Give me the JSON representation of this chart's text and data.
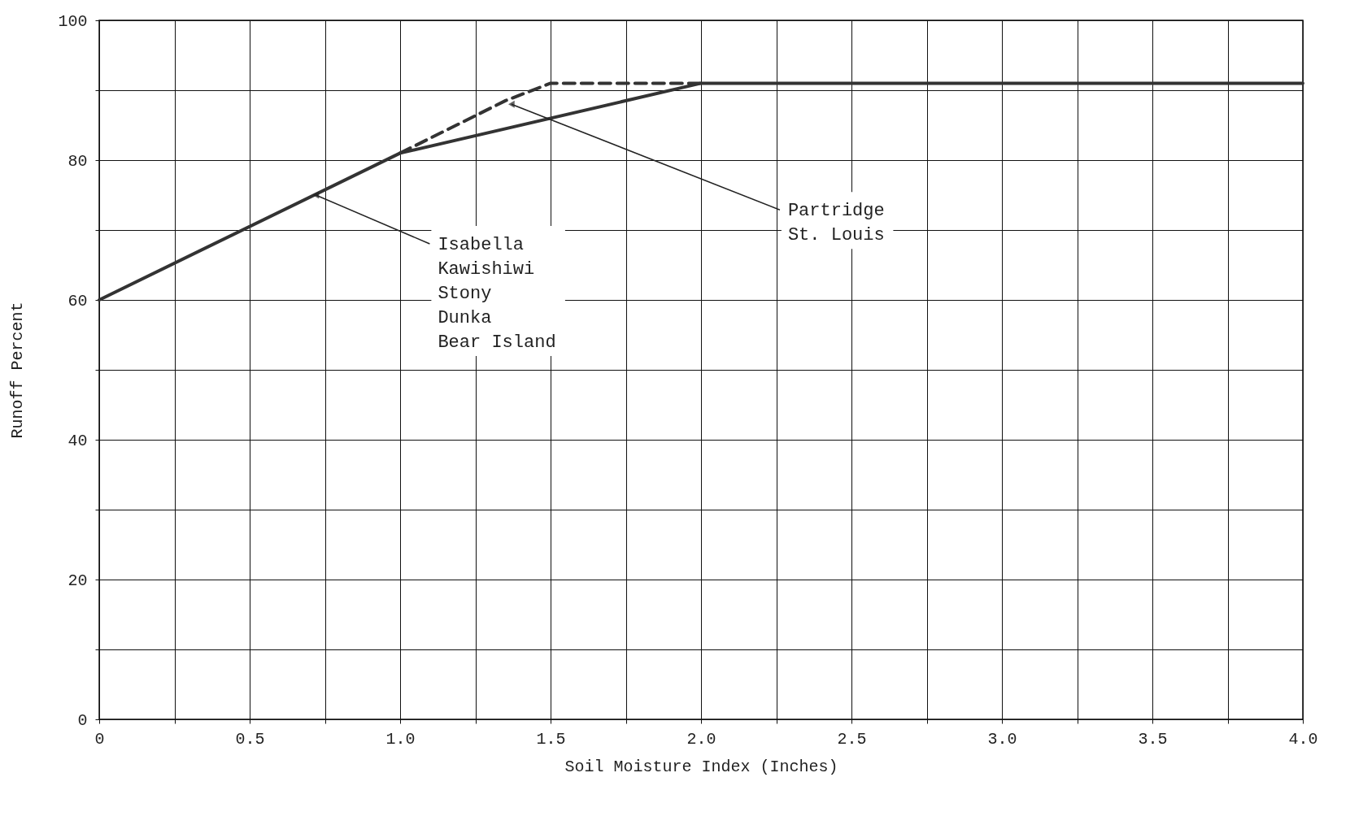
{
  "chart_data": {
    "type": "line",
    "xlabel": "Soil Moisture Index (Inches)",
    "ylabel": "Runoff Percent",
    "xlim": [
      0,
      4
    ],
    "ylim": [
      0,
      100
    ],
    "xticks": [
      0,
      {
        "value": 0.25,
        "label": null
      },
      0.5,
      {
        "value": 0.75,
        "label": null
      },
      {
        "value": 1,
        "label": "1.0"
      },
      {
        "value": 1.25,
        "label": null
      },
      1.5,
      {
        "value": 1.75,
        "label": null
      },
      {
        "value": 2,
        "label": "2.0"
      },
      {
        "value": 2.25,
        "label": null
      },
      2.5,
      {
        "value": 2.75,
        "label": null
      },
      {
        "value": 3,
        "label": "3.0"
      },
      {
        "value": 3.25,
        "label": null
      },
      3.5,
      {
        "value": 3.75,
        "label": null
      },
      {
        "value": 4,
        "label": "4.0"
      }
    ],
    "yticks": [
      0,
      {
        "value": 10,
        "label": null
      },
      20,
      {
        "value": 30,
        "label": null
      },
      40,
      {
        "value": 50,
        "label": null
      },
      60,
      {
        "value": 70,
        "label": null
      },
      80,
      {
        "value": 90,
        "label": null
      },
      100
    ],
    "grid": true,
    "series": [
      {
        "color": "#333333",
        "line_style": "solid",
        "x": [
          0,
          1,
          2,
          4
        ],
        "values": [
          60,
          81,
          91,
          91
        ]
      },
      {
        "color": "#333333",
        "line_style": "dashed",
        "x": [
          1,
          1.35,
          1.5,
          2
        ],
        "values": [
          81,
          88.5,
          91,
          91
        ]
      }
    ],
    "annotations": [
      {
        "text": "Isabella\nKawishiwi\nStony\nDunka\nBear Island",
        "x": 0.72,
        "y": 75
      },
      {
        "text": "Partridge\nSt. Louis",
        "x": 1.37,
        "y": 88
      }
    ]
  }
}
